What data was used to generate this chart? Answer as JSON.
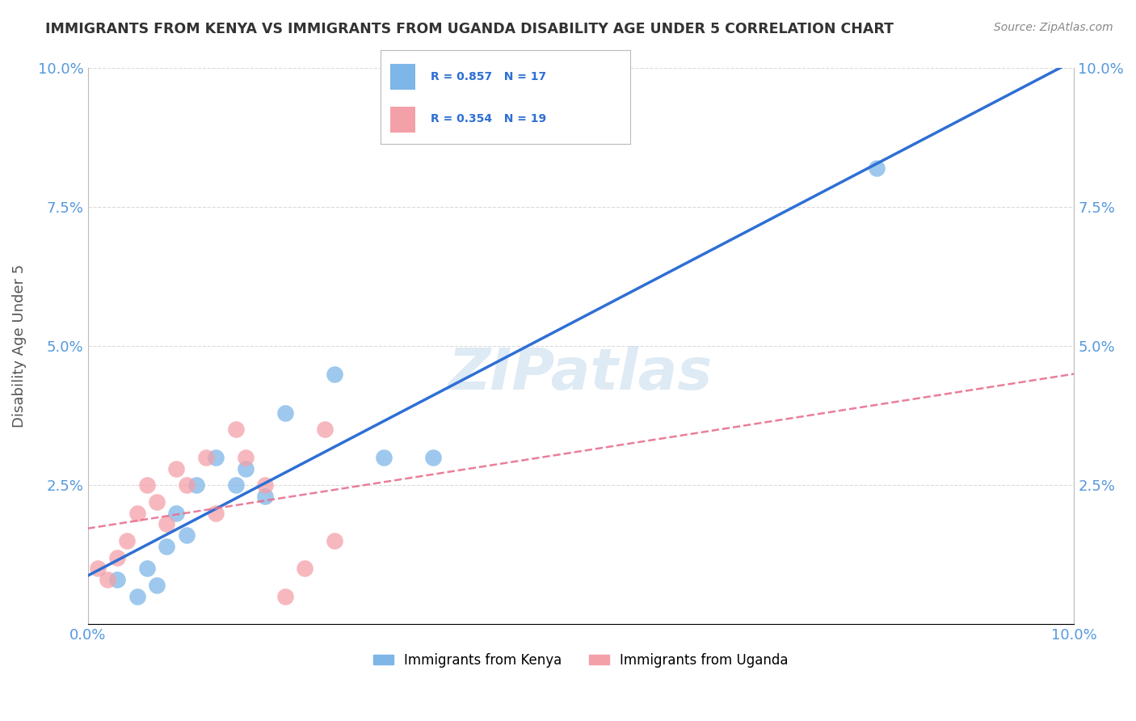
{
  "title": "IMMIGRANTS FROM KENYA VS IMMIGRANTS FROM UGANDA DISABILITY AGE UNDER 5 CORRELATION CHART",
  "source": "Source: ZipAtlas.com",
  "ylabel": "Disability Age Under 5",
  "xlim": [
    0.0,
    0.1
  ],
  "ylim": [
    0.0,
    0.1
  ],
  "xticks": [
    0.0,
    0.025,
    0.05,
    0.075,
    0.1
  ],
  "yticks": [
    0.0,
    0.025,
    0.05,
    0.075,
    0.1
  ],
  "xticklabels": [
    "0.0%",
    "",
    "",
    "",
    "10.0%"
  ],
  "yticklabels": [
    "",
    "2.5%",
    "5.0%",
    "7.5%",
    "10.0%"
  ],
  "kenya_color": "#7EB6E8",
  "uganda_color": "#F4A0A8",
  "kenya_line_color": "#2E6FD4",
  "uganda_line_color": "#E87090",
  "kenya_R": 0.857,
  "kenya_N": 17,
  "uganda_R": 0.354,
  "uganda_N": 19,
  "kenya_x": [
    0.003,
    0.005,
    0.006,
    0.007,
    0.008,
    0.009,
    0.01,
    0.011,
    0.013,
    0.015,
    0.016,
    0.018,
    0.02,
    0.025,
    0.03,
    0.035,
    0.08
  ],
  "kenya_y": [
    0.008,
    0.005,
    0.01,
    0.007,
    0.014,
    0.02,
    0.016,
    0.025,
    0.03,
    0.025,
    0.028,
    0.023,
    0.038,
    0.045,
    0.03,
    0.03,
    0.082
  ],
  "uganda_x": [
    0.001,
    0.002,
    0.003,
    0.004,
    0.005,
    0.006,
    0.007,
    0.008,
    0.009,
    0.01,
    0.012,
    0.013,
    0.015,
    0.016,
    0.018,
    0.02,
    0.022,
    0.024,
    0.025
  ],
  "uganda_y": [
    0.01,
    0.008,
    0.012,
    0.015,
    0.02,
    0.025,
    0.022,
    0.018,
    0.028,
    0.025,
    0.03,
    0.02,
    0.035,
    0.03,
    0.025,
    0.005,
    0.01,
    0.035,
    0.015
  ],
  "watermark": "ZIPatlas",
  "background_color": "#FFFFFF",
  "grid_color": "#CCCCCC",
  "title_color": "#333333",
  "axis_label_color": "#5599DD",
  "tick_label_color": "#5599DD"
}
